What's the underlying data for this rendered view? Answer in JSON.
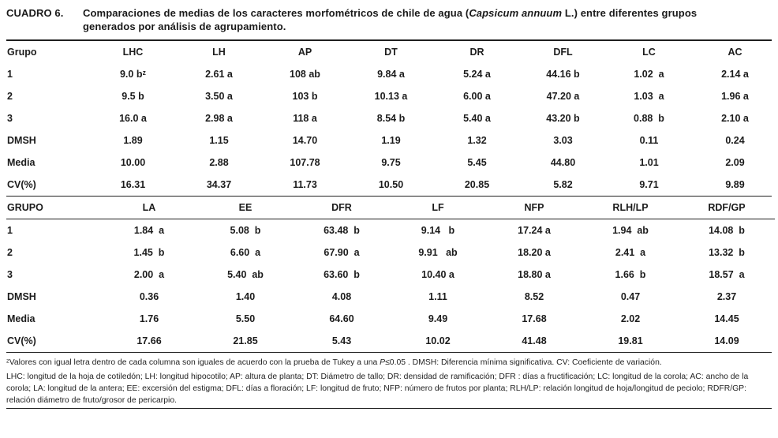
{
  "title": {
    "label": "CUADRO 6.",
    "line1_pre": "Comparaciones de medias de los caracteres morfométricos de chile de agua (",
    "line1_italic": "Capsicum annuum",
    "line1_post": " L.) entre diferentes grupos",
    "line2": "generados por análisis de agrupamiento."
  },
  "table1": {
    "headers": [
      "Grupo",
      "LHC",
      "LH",
      "AP",
      "DT",
      "DR",
      "DFL",
      "LC",
      "AC"
    ],
    "rows": [
      [
        "1",
        "9.0 bᶻ",
        "2.61 a",
        "108 ab",
        "9.84 a",
        "5.24 a",
        "44.16 b",
        "1.02  a",
        "2.14 a"
      ],
      [
        "2",
        "9.5 b",
        "3.50 a",
        "103 b",
        "10.13 a",
        "6.00 a",
        "47.20 a",
        "1.03  a",
        "1.96 a"
      ],
      [
        "3",
        "16.0 a",
        "2.98 a",
        "118 a",
        "8.54 b",
        "5.40 a",
        "43.20 b",
        "0.88  b",
        "2.10 a"
      ],
      [
        "DMSH",
        "1.89",
        "1.15",
        "14.70",
        "1.19",
        "1.32",
        "3.03",
        "0.11",
        "0.24"
      ],
      [
        "Media",
        "10.00",
        "2.88",
        "107.78",
        "9.75",
        "5.45",
        "44.80",
        "1.01",
        "2.09"
      ],
      [
        "CV(%)",
        "16.31",
        "34.37",
        "11.73",
        "10.50",
        "20.85",
        "5.82",
        "9.71",
        "9.89"
      ]
    ]
  },
  "table2": {
    "headers": [
      "GRUPO",
      "LA",
      "EE",
      "DFR",
      "LF",
      "NFP",
      "RLH/LP",
      "RDF/GP"
    ],
    "rows": [
      [
        "1",
        "1.84  a",
        "5.08  b",
        "63.48  b",
        "9.14   b",
        "17.24 a",
        "1.94  ab",
        "14.08  b"
      ],
      [
        "2",
        "1.45  b",
        "6.60  a",
        "67.90  a",
        "9.91   ab",
        "18.20 a",
        "2.41  a",
        "13.32  b"
      ],
      [
        "3",
        "2.00  a",
        "5.40  ab",
        "63.60  b",
        "10.40 a",
        "18.80 a",
        "1.66  b",
        "18.57  a"
      ],
      [
        "DMSH",
        "0.36",
        "1.40",
        "4.08",
        "1.11",
        "8.52",
        "0.47",
        "2.37"
      ],
      [
        "Media",
        "1.76",
        "5.50",
        "64.60",
        "9.49",
        "17.68",
        "2.02",
        "14.45"
      ],
      [
        "CV(%)",
        "17.66",
        "21.85",
        "5.43",
        "10.02",
        "41.48",
        "19.81",
        "14.09"
      ]
    ]
  },
  "footnotes": {
    "note1_pre": "ᶻValores con igual letra dentro de cada columna son iguales de acuerdo con la prueba de Tukey a una ",
    "note1_italic": "P",
    "note1_post": "≤0.05 . DMSH: Diferencia mínima significativa.  CV: Coeficiente de variación.",
    "note2": "LHC: longitud de la hoja de cotiledón;  LH: longitud hipocotilo;  AP: altura de planta;  DT: Diámetro de tallo;  DR: densidad de ramificación;   DFR : días a fructificación;   LC: longitud de la corola;    AC: ancho de la corola;  LA: longitud de la antera;  EE: excersión del estigma;  DFL: días a floración;  LF: longitud de fruto;  NFP: número de frutos por planta;  RLH/LP: relación  longitud de hoja/longitud de peciolo;  RDFR/GP: relación diámetro de fruto/grosor de pericarpio."
  }
}
